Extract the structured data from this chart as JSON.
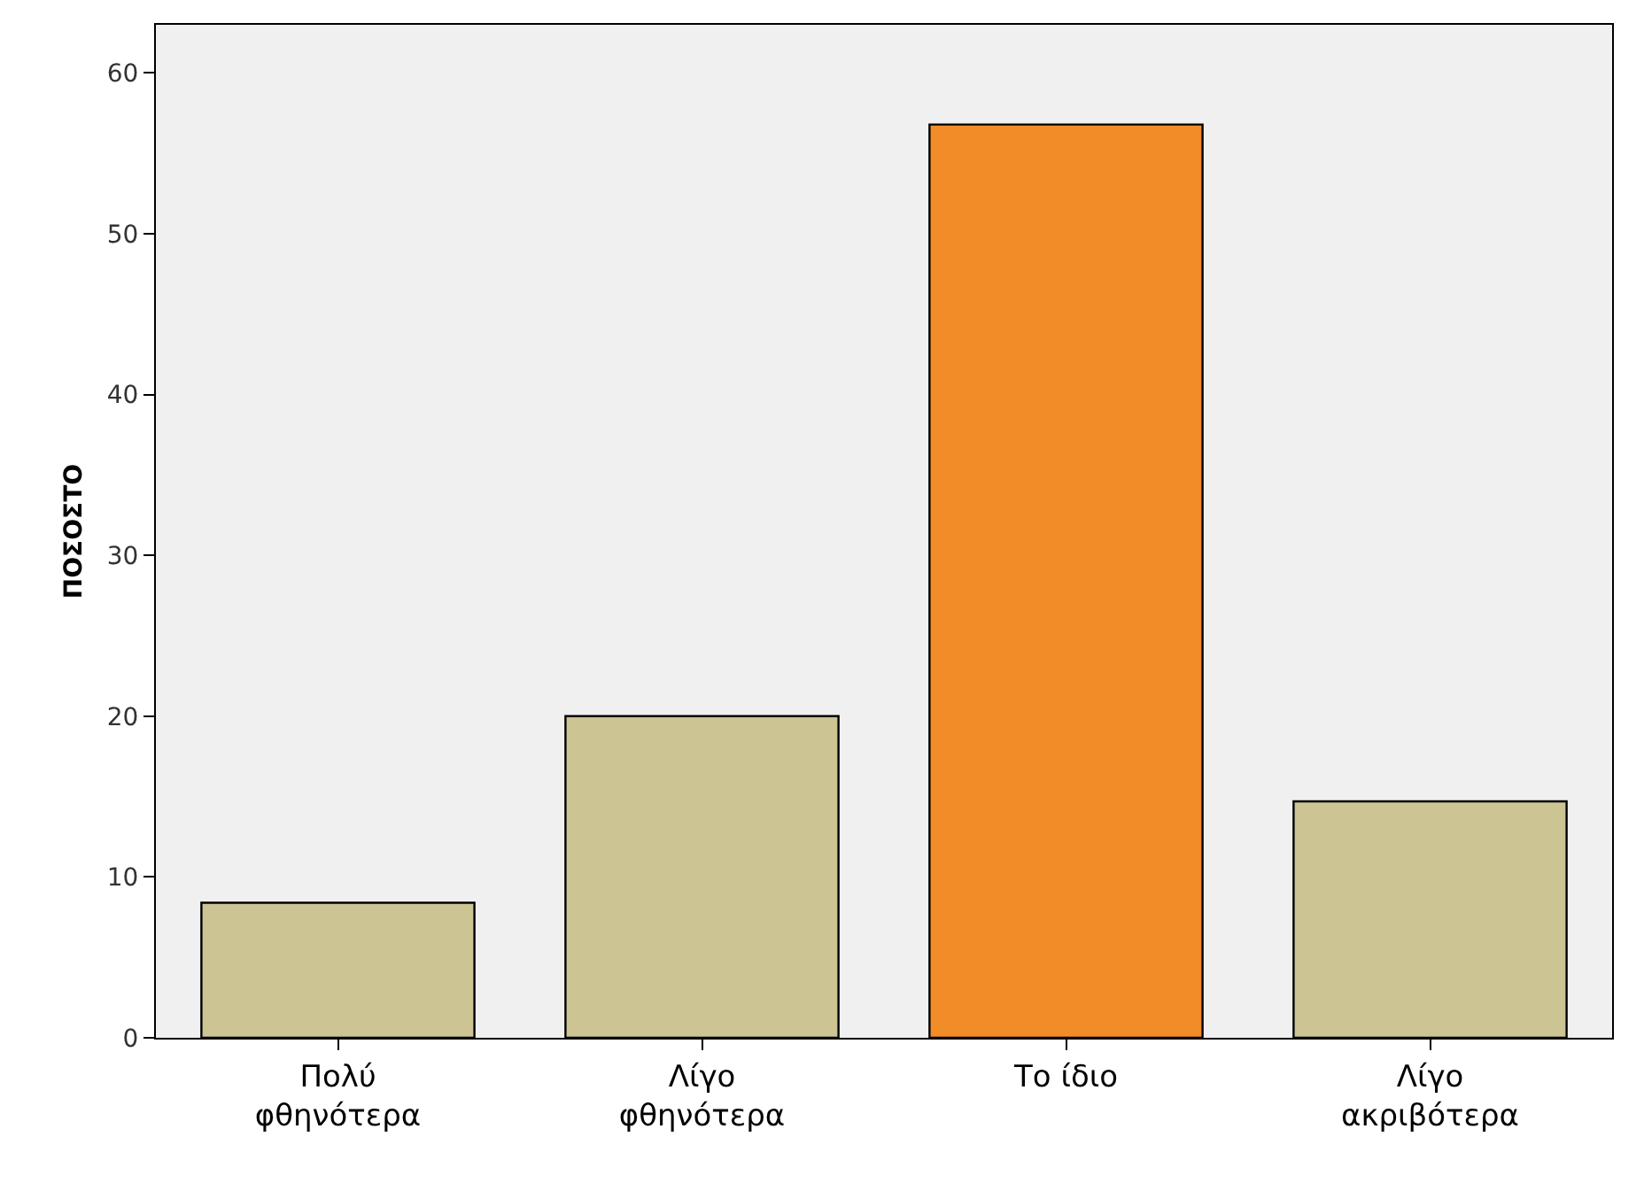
{
  "chart_data": {
    "type": "bar",
    "ylabel": "ΠΟΣΟΣΤΟ",
    "categories": [
      "Πολύ\nφθηνότερα",
      "Λίγο\nφθηνότερα",
      "Το ίδιο",
      "Λίγο\nακριβότερα"
    ],
    "values": [
      8.4,
      20,
      56.8,
      14.7
    ],
    "colors": [
      "#cdc493",
      "#cdc493",
      "#f28c28",
      "#cdc493"
    ],
    "ylim": [
      0,
      63
    ],
    "yticks": [
      0,
      10,
      20,
      30,
      40,
      50,
      60
    ],
    "grid": false
  }
}
